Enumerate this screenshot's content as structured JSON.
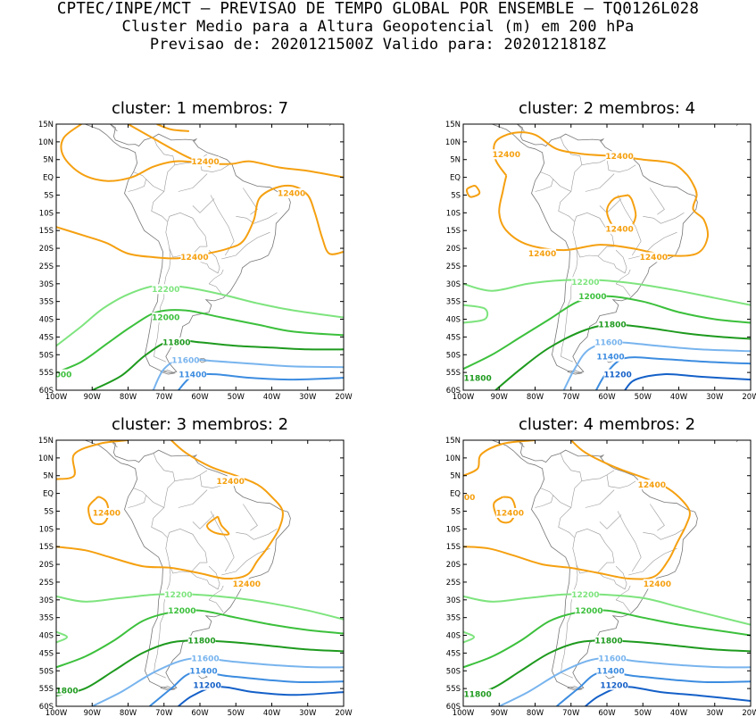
{
  "header": {
    "line1": "CPTEC/INPE/MCT – PREVISAO DE TEMPO GLOBAL POR ENSEMBLE – TQ0126L028",
    "line2": "Cluster Medio para a Altura Geopotencial (m) em 200 hPa",
    "line3": "Previsao de: 2020121500Z   Valido para: 2020121818Z"
  },
  "axes": {
    "lat_labels": [
      "15N",
      "10N",
      "5N",
      "EQ",
      "5S",
      "10S",
      "15S",
      "20S",
      "25S",
      "30S",
      "35S",
      "40S",
      "45S",
      "50S",
      "55S",
      "60S"
    ],
    "lon_labels": [
      "100W",
      "90W",
      "80W",
      "70W",
      "60W",
      "50W",
      "40W",
      "30W",
      "20W"
    ],
    "lat_range": [
      15,
      -60
    ],
    "lon_range": [
      -100,
      -20
    ]
  },
  "colors": {
    "c12400": "#f5a010",
    "c12200": "#7ee47e",
    "c12000": "#3cc03c",
    "c11800": "#1e9a1e",
    "c11600": "#78b4ee",
    "c11400": "#3c8ce0",
    "c11200": "#1460c8",
    "coast": "#777777"
  },
  "panels": [
    {
      "title": "cluster: 1  membros: 7",
      "labels": [
        {
          "text": "12400",
          "lon": -58.5,
          "lat": 4.5,
          "level": "c12400"
        },
        {
          "text": "12400",
          "lon": -34.5,
          "lat": -4.5,
          "level": "c12400"
        },
        {
          "text": "12400",
          "lon": -61.5,
          "lat": -22.5,
          "level": "c12400"
        },
        {
          "text": "12200",
          "lon": -69.5,
          "lat": -31.5,
          "level": "c12200"
        },
        {
          "text": "12000",
          "lon": -69.5,
          "lat": -39.5,
          "level": "c12000"
        },
        {
          "text": "11800",
          "lon": -66.5,
          "lat": -46.5,
          "level": "c11800"
        },
        {
          "text": "11600",
          "lon": -64,
          "lat": -51.5,
          "level": "c11600"
        },
        {
          "text": "11400",
          "lon": -62,
          "lat": -55.5,
          "level": "c11400"
        },
        {
          "text": "000",
          "lon": -98,
          "lat": -55.5,
          "level": "c12000"
        }
      ]
    },
    {
      "title": "cluster: 2  membros: 4",
      "labels": [
        {
          "text": "12400",
          "lon": -88,
          "lat": 6.5,
          "level": "c12400"
        },
        {
          "text": "12400",
          "lon": -56.5,
          "lat": 6,
          "level": "c12400"
        },
        {
          "text": "12400",
          "lon": -56.5,
          "lat": -14.5,
          "level": "c12400"
        },
        {
          "text": "12400",
          "lon": -78,
          "lat": -21.5,
          "level": "c12400"
        },
        {
          "text": "12400",
          "lon": -47,
          "lat": -22.5,
          "level": "c12400"
        },
        {
          "text": "12200",
          "lon": -66,
          "lat": -29.5,
          "level": "c12200"
        },
        {
          "text": "12000",
          "lon": -64,
          "lat": -33.5,
          "level": "c12000"
        },
        {
          "text": "11800",
          "lon": -58.5,
          "lat": -41.5,
          "level": "c11800"
        },
        {
          "text": "11600",
          "lon": -59.5,
          "lat": -46.5,
          "level": "c11600"
        },
        {
          "text": "11400",
          "lon": -59,
          "lat": -50.5,
          "level": "c11400"
        },
        {
          "text": "11200",
          "lon": -57,
          "lat": -55.5,
          "level": "c11200"
        },
        {
          "text": "11800",
          "lon": -96,
          "lat": -56.5,
          "level": "c11800"
        }
      ]
    },
    {
      "title": "cluster: 3  membros: 2",
      "labels": [
        {
          "text": "12400",
          "lon": -51.5,
          "lat": 3.5,
          "level": "c12400"
        },
        {
          "text": "12400",
          "lon": -86,
          "lat": -5.5,
          "level": "c12400"
        },
        {
          "text": "12400",
          "lon": -47,
          "lat": -25.5,
          "level": "c12400"
        },
        {
          "text": "12200",
          "lon": -66,
          "lat": -28.5,
          "level": "c12200"
        },
        {
          "text": "12000",
          "lon": -65,
          "lat": -33,
          "level": "c12000"
        },
        {
          "text": "11800",
          "lon": -59.5,
          "lat": -41.5,
          "level": "c11800"
        },
        {
          "text": "11600",
          "lon": -58.5,
          "lat": -46.5,
          "level": "c11600"
        },
        {
          "text": "11400",
          "lon": -59,
          "lat": -50,
          "level": "c11400"
        },
        {
          "text": "11200",
          "lon": -58,
          "lat": -54,
          "level": "c11200"
        },
        {
          "text": "1800",
          "lon": -97,
          "lat": -55.5,
          "level": "c11800"
        }
      ]
    },
    {
      "title": "cluster: 4  membros: 2",
      "labels": [
        {
          "text": "12400",
          "lon": -47.5,
          "lat": 2.5,
          "level": "c12400"
        },
        {
          "text": "400",
          "lon": -99,
          "lat": -1,
          "level": "c12400"
        },
        {
          "text": "12400",
          "lon": -87,
          "lat": -5.5,
          "level": "c12400"
        },
        {
          "text": "12400",
          "lon": -46,
          "lat": -25.5,
          "level": "c12400"
        },
        {
          "text": "12200",
          "lon": -66,
          "lat": -28.5,
          "level": "c12200"
        },
        {
          "text": "12000",
          "lon": -65,
          "lat": -33,
          "level": "c12000"
        },
        {
          "text": "11800",
          "lon": -59.5,
          "lat": -41.5,
          "level": "c11800"
        },
        {
          "text": "11600",
          "lon": -58.5,
          "lat": -46.5,
          "level": "c11600"
        },
        {
          "text": "11400",
          "lon": -59,
          "lat": -50,
          "level": "c11400"
        },
        {
          "text": "11200",
          "lon": -58,
          "lat": -54,
          "level": "c11200"
        },
        {
          "text": "11800",
          "lon": -96,
          "lat": -56.5,
          "level": "c11800"
        }
      ]
    }
  ]
}
